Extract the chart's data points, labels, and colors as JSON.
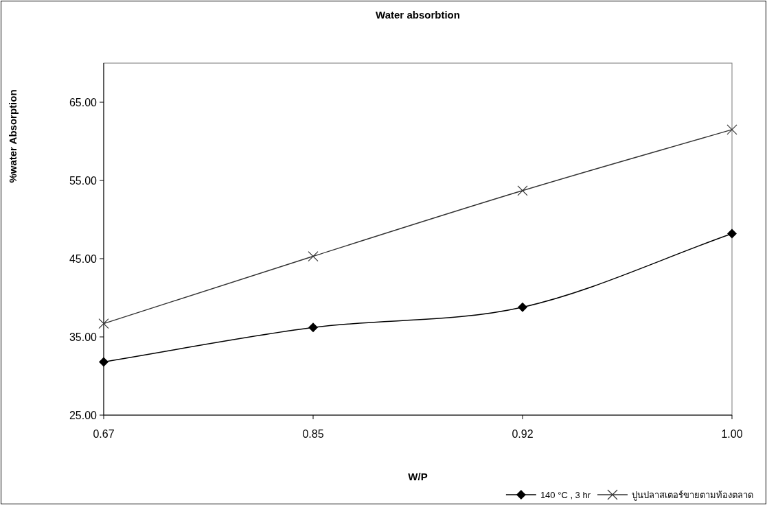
{
  "chart_data": {
    "type": "line",
    "title": "Water absorbtion",
    "xlabel": "W/P",
    "ylabel": "%water Absorption",
    "categories": [
      "0.67",
      "0.85",
      "0.92",
      "1.00"
    ],
    "series": [
      {
        "name": "140 °C , 3 hr",
        "color": "#000000",
        "marker": "diamond",
        "values": [
          31.8,
          36.2,
          38.8,
          48.2
        ]
      },
      {
        "name": "ปูนปลาสเตอร์ขายตามท้องตลาด",
        "color": "#333333",
        "marker": "cross",
        "values": [
          36.7,
          45.3,
          53.7,
          61.5
        ]
      }
    ],
    "ylim": [
      25,
      70
    ],
    "yticks": [
      {
        "value": 25,
        "label": "25.00"
      },
      {
        "value": 35,
        "label": "35.00"
      },
      {
        "value": 45,
        "label": "45.00"
      },
      {
        "value": 55,
        "label": "55.00"
      },
      {
        "value": 65,
        "label": "65.00"
      }
    ],
    "grid": false,
    "legend": "bottom right",
    "line_style": "solid"
  }
}
